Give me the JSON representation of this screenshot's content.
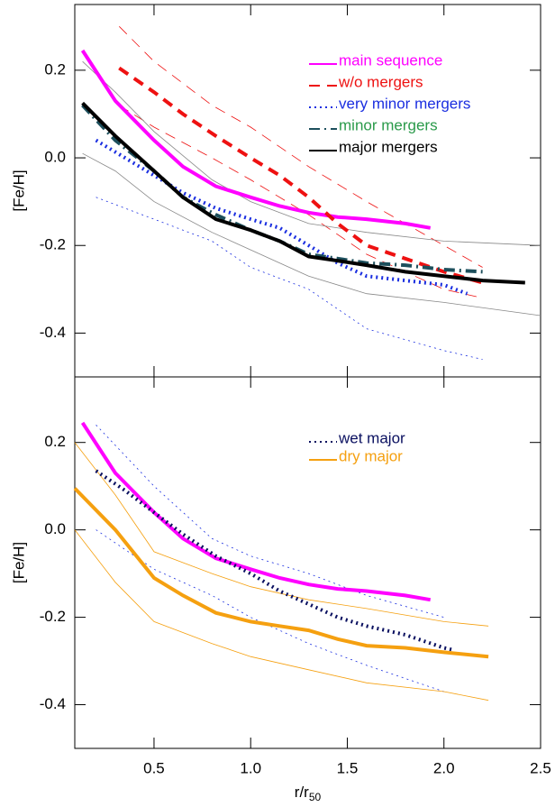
{
  "chart_data": [
    {
      "type": "line",
      "ylabel": "[Fe/H]",
      "xlim": [
        0.09,
        2.5
      ],
      "ylim": [
        -0.5,
        0.35
      ],
      "xticks": [
        0.5,
        {
          "value": 1,
          "label": "1.0"
        },
        1.5,
        {
          "value": 2,
          "label": "2.0"
        },
        2.5
      ],
      "xticklabels": false,
      "yticks": [
        -0.4,
        -0.2,
        {
          "value": 0,
          "label": "0.0"
        },
        0.2
      ],
      "series": [
        {
          "name": "main sequence",
          "color": "#ff00ff",
          "label_color": "#ff00ff",
          "style": "solid",
          "width": 4,
          "x": [
            0.13,
            0.3,
            0.5,
            0.65,
            0.82,
            1.0,
            1.15,
            1.3,
            1.45,
            1.6,
            1.8,
            1.93
          ],
          "values": [
            0.245,
            0.13,
            0.04,
            -0.02,
            -0.065,
            -0.09,
            -0.11,
            -0.125,
            -0.135,
            -0.14,
            -0.15,
            -0.16
          ]
        },
        {
          "name": "w/o mergers",
          "color": "#ee1111",
          "label_color": "#ee1111",
          "style": "dashed",
          "width": 4,
          "x": [
            0.32,
            0.5,
            0.65,
            0.82,
            1.0,
            1.15,
            1.3,
            1.45,
            1.6,
            1.8,
            2.0,
            2.2
          ],
          "values": [
            0.205,
            0.15,
            0.1,
            0.05,
            0.0,
            -0.04,
            -0.09,
            -0.15,
            -0.2,
            -0.23,
            -0.26,
            -0.285
          ]
        },
        {
          "name": "very minor mergers",
          "color": "#1a2ee0",
          "label_color": "#1a2ee0",
          "style": "dotted",
          "width": 4,
          "x": [
            0.2,
            0.35,
            0.5,
            0.65,
            0.82,
            1.0,
            1.15,
            1.3,
            1.45,
            1.6,
            1.8,
            2.0,
            2.12
          ],
          "values": [
            0.04,
            0.0,
            -0.04,
            -0.08,
            -0.115,
            -0.14,
            -0.16,
            -0.2,
            -0.24,
            -0.27,
            -0.28,
            -0.29,
            -0.31
          ]
        },
        {
          "name": "minor mergers",
          "color": "#1d4f5c",
          "label_color": "#2a9a4a",
          "style": "dashdot",
          "width": 4,
          "x": [
            0.13,
            0.3,
            0.5,
            0.65,
            0.82,
            1.0,
            1.15,
            1.3,
            1.45,
            1.6,
            1.8,
            2.0,
            2.2
          ],
          "values": [
            0.12,
            0.04,
            -0.03,
            -0.09,
            -0.13,
            -0.165,
            -0.19,
            -0.22,
            -0.23,
            -0.24,
            -0.245,
            -0.255,
            -0.26
          ]
        },
        {
          "name": "major mergers",
          "color": "#000000",
          "label_color": "#000000",
          "style": "solid",
          "width": 4,
          "x": [
            0.13,
            0.3,
            0.5,
            0.65,
            0.82,
            1.0,
            1.15,
            1.3,
            1.45,
            1.6,
            1.8,
            2.0,
            2.2,
            2.42
          ],
          "values": [
            0.125,
            0.05,
            -0.03,
            -0.09,
            -0.14,
            -0.165,
            -0.19,
            -0.225,
            -0.235,
            -0.245,
            -0.26,
            -0.27,
            -0.28,
            -0.285
          ]
        }
      ],
      "envelopes": [
        {
          "color": "#ee1111",
          "style": "dashed",
          "x": [
            0.32,
            0.5,
            0.8,
            1.0,
            1.3,
            1.6,
            2.0,
            2.2
          ],
          "values": [
            0.3,
            0.22,
            0.12,
            0.07,
            -0.02,
            -0.1,
            -0.2,
            -0.25
          ]
        },
        {
          "color": "#ee1111",
          "style": "dashed",
          "x": [
            0.32,
            0.5,
            0.8,
            1.0,
            1.3,
            1.6,
            2.0,
            2.2
          ],
          "values": [
            0.12,
            0.07,
            0.0,
            -0.05,
            -0.13,
            -0.22,
            -0.3,
            -0.32
          ]
        },
        {
          "color": "#888888",
          "style": "solid",
          "x": [
            0.13,
            0.3,
            0.5,
            0.8,
            1.0,
            1.3,
            1.6,
            2.0,
            2.5
          ],
          "values": [
            0.22,
            0.15,
            0.06,
            -0.05,
            -0.1,
            -0.15,
            -0.17,
            -0.19,
            -0.2
          ]
        },
        {
          "color": "#888888",
          "style": "solid",
          "x": [
            0.13,
            0.3,
            0.5,
            0.8,
            1.0,
            1.3,
            1.6,
            2.0,
            2.5
          ],
          "values": [
            0.01,
            -0.03,
            -0.1,
            -0.17,
            -0.21,
            -0.27,
            -0.31,
            -0.33,
            -0.36
          ]
        },
        {
          "color": "#1a2ee0",
          "style": "dotted",
          "x": [
            0.2,
            0.5,
            0.8,
            1.0,
            1.3,
            1.6,
            2.0,
            2.2
          ],
          "values": [
            -0.09,
            -0.14,
            -0.19,
            -0.25,
            -0.3,
            -0.39,
            -0.44,
            -0.46
          ]
        }
      ]
    },
    {
      "type": "line",
      "ylabel": "[Fe/H]",
      "xlabel": "r/r",
      "xlabel_sub": "50",
      "xlim": [
        0.09,
        2.5
      ],
      "ylim": [
        -0.5,
        0.35
      ],
      "xticks": [
        0.5,
        {
          "value": 1,
          "label": "1.0"
        },
        1.5,
        {
          "value": 2,
          "label": "2.0"
        },
        2.5
      ],
      "xticklabels": true,
      "yticks": [
        -0.4,
        -0.2,
        {
          "value": 0,
          "label": "0.0"
        },
        0.2
      ],
      "series": [
        {
          "color": "#ff00ff",
          "style": "solid",
          "width": 4,
          "x": [
            0.13,
            0.3,
            0.5,
            0.65,
            0.82,
            1.0,
            1.15,
            1.3,
            1.45,
            1.6,
            1.8,
            1.93
          ],
          "values": [
            0.245,
            0.13,
            0.04,
            -0.02,
            -0.065,
            -0.09,
            -0.11,
            -0.125,
            -0.135,
            -0.14,
            -0.15,
            -0.16
          ]
        },
        {
          "name": "wet major",
          "color": "#0a1060",
          "label_color": "#0a1060",
          "style": "dotted",
          "width": 4,
          "x": [
            0.2,
            0.35,
            0.5,
            0.65,
            0.82,
            1.0,
            1.15,
            1.3,
            1.45,
            1.6,
            1.8,
            2.0,
            2.05
          ],
          "values": [
            0.135,
            0.09,
            0.04,
            -0.01,
            -0.06,
            -0.1,
            -0.14,
            -0.17,
            -0.2,
            -0.22,
            -0.24,
            -0.27,
            -0.275
          ]
        },
        {
          "name": "dry major",
          "color": "#f5a010",
          "label_color": "#f5a010",
          "style": "solid",
          "width": 4,
          "x": [
            0.09,
            0.3,
            0.5,
            0.65,
            0.82,
            1.0,
            1.15,
            1.3,
            1.45,
            1.6,
            1.8,
            2.0,
            2.23
          ],
          "values": [
            0.095,
            0.0,
            -0.11,
            -0.15,
            -0.19,
            -0.21,
            -0.22,
            -0.23,
            -0.25,
            -0.265,
            -0.27,
            -0.28,
            -0.29
          ]
        }
      ],
      "envelopes": [
        {
          "color": "#1a2ee0",
          "style": "dotted",
          "x": [
            0.2,
            0.5,
            0.8,
            1.0,
            1.3,
            1.6,
            2.0
          ],
          "values": [
            0.24,
            0.1,
            -0.02,
            -0.06,
            -0.1,
            -0.15,
            -0.2
          ]
        },
        {
          "color": "#1a2ee0",
          "style": "dotted",
          "x": [
            0.2,
            0.5,
            0.8,
            1.0,
            1.3,
            1.6,
            2.0
          ],
          "values": [
            0.0,
            -0.09,
            -0.15,
            -0.2,
            -0.26,
            -0.31,
            -0.37
          ]
        },
        {
          "color": "#f5a010",
          "style": "solid",
          "x": [
            0.09,
            0.3,
            0.5,
            0.8,
            1.0,
            1.3,
            1.6,
            2.0,
            2.23
          ],
          "values": [
            0.2,
            0.08,
            -0.05,
            -0.1,
            -0.13,
            -0.16,
            -0.18,
            -0.21,
            -0.22
          ]
        },
        {
          "color": "#f5a010",
          "style": "solid",
          "x": [
            0.09,
            0.3,
            0.5,
            0.8,
            1.0,
            1.3,
            1.6,
            2.0,
            2.23
          ],
          "values": [
            0.0,
            -0.12,
            -0.21,
            -0.26,
            -0.29,
            -0.32,
            -0.35,
            -0.37,
            -0.39
          ]
        }
      ]
    }
  ]
}
